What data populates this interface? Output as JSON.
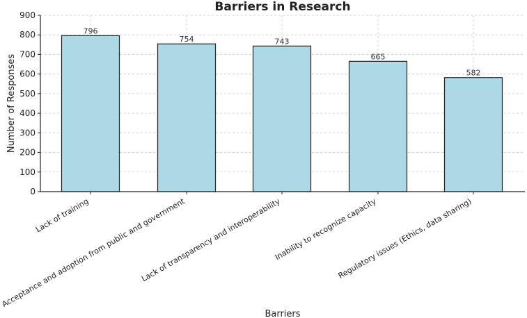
{
  "chart_data": {
    "type": "bar",
    "title": "Barriers in Research",
    "xlabel": "Barriers",
    "ylabel": "Number of Responses",
    "categories": [
      "Lack of training",
      "Acceptance and adoption from public and government",
      "Lack of transparency and interoperability",
      "Inability to recognize capacity",
      "Regulatory issues (Ethics, data sharing)"
    ],
    "values": [
      796,
      754,
      743,
      665,
      582
    ],
    "ylim": [
      0,
      900
    ],
    "yticks": [
      0,
      100,
      200,
      300,
      400,
      500,
      600,
      700,
      800,
      900
    ],
    "grid": true,
    "bar_color": "#add8e6",
    "edge_color": "#222222"
  }
}
